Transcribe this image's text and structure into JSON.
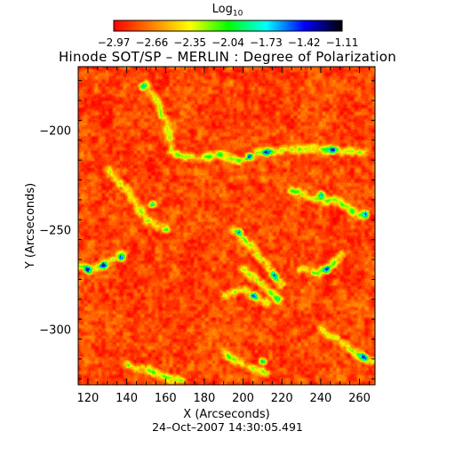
{
  "colorbar": {
    "title": "Log",
    "title_sub": "10",
    "ticks": [
      "−2.97",
      "−2.66",
      "−2.35",
      "−2.04",
      "−1.73",
      "−1.42",
      "−1.11"
    ],
    "tick_values": [
      -2.97,
      -2.66,
      -2.35,
      -2.04,
      -1.73,
      -1.42,
      -1.11
    ],
    "range": [
      -2.97,
      -1.11
    ],
    "colormap": [
      "#ff0000",
      "#ff7f00",
      "#ffff00",
      "#00ff00",
      "#00ffff",
      "#0000ff",
      "#000000"
    ]
  },
  "chart_data": {
    "type": "heatmap",
    "title": "Hinode SOT/SP – MERLIN : Degree of Polarization",
    "xlabel": "X (Arcseconds)",
    "ylabel": "Y (Arcseconds)",
    "xlim": [
      115,
      268
    ],
    "ylim": [
      -328,
      -168
    ],
    "xticks": [
      120,
      140,
      160,
      180,
      200,
      220,
      240,
      260
    ],
    "yticks": [
      -200,
      -250,
      -300
    ],
    "value_scale": "log10",
    "value_range": [
      -2.97,
      -1.11
    ],
    "background_level": -2.8,
    "network_features": [
      {
        "x": [
          150,
          155,
          160,
          163,
          168
        ],
        "y": [
          -177,
          -185,
          -196,
          -210,
          -213
        ]
      },
      {
        "x": [
          168,
          178,
          188,
          198,
          208,
          220,
          235,
          250,
          262
        ],
        "y": [
          -213,
          -214,
          -212,
          -215,
          -211,
          -210,
          -209,
          -210,
          -211
        ]
      },
      {
        "x": [
          225,
          238,
          248,
          255,
          262
        ],
        "y": [
          -230,
          -235,
          -235,
          -240,
          -243
        ]
      },
      {
        "x": [
          195,
          203,
          208,
          214,
          219
        ],
        "y": [
          -250,
          -257,
          -263,
          -270,
          -277
        ]
      },
      {
        "x": [
          115,
          122,
          130,
          138
        ],
        "y": [
          -268,
          -270,
          -266,
          -262
        ]
      },
      {
        "x": [
          200,
          210,
          218
        ],
        "y": [
          -270,
          -278,
          -285
        ]
      },
      {
        "x": [
          230,
          238,
          245,
          250
        ],
        "y": [
          -270,
          -272,
          -268,
          -263
        ]
      },
      {
        "x": [
          190,
          200,
          212
        ],
        "y": [
          -283,
          -280,
          -287
        ]
      },
      {
        "x": [
          130,
          140,
          150,
          160
        ],
        "y": [
          -220,
          -230,
          -245,
          -250
        ]
      },
      {
        "x": [
          240,
          250,
          258,
          266
        ],
        "y": [
          -300,
          -306,
          -312,
          -316
        ]
      },
      {
        "x": [
          190,
          200,
          212
        ],
        "y": [
          -312,
          -318,
          -322
        ]
      },
      {
        "x": [
          140,
          150,
          160,
          168
        ],
        "y": [
          -318,
          -320,
          -324,
          -326
        ]
      }
    ],
    "strong_spots": [
      {
        "x": 203,
        "y": -213
      },
      {
        "x": 212,
        "y": -211
      },
      {
        "x": 246,
        "y": -210
      },
      {
        "x": 240,
        "y": -232
      },
      {
        "x": 263,
        "y": -242
      },
      {
        "x": 128,
        "y": -268
      },
      {
        "x": 137,
        "y": -264
      },
      {
        "x": 120,
        "y": -270
      },
      {
        "x": 198,
        "y": -251
      },
      {
        "x": 216,
        "y": -273
      },
      {
        "x": 205,
        "y": -283
      },
      {
        "x": 243,
        "y": -270
      },
      {
        "x": 262,
        "y": -314
      },
      {
        "x": 210,
        "y": -316
      },
      {
        "x": 153,
        "y": -237
      },
      {
        "x": 148,
        "y": -178
      }
    ]
  },
  "footer": "24–Oct–2007 14:30:05.491"
}
